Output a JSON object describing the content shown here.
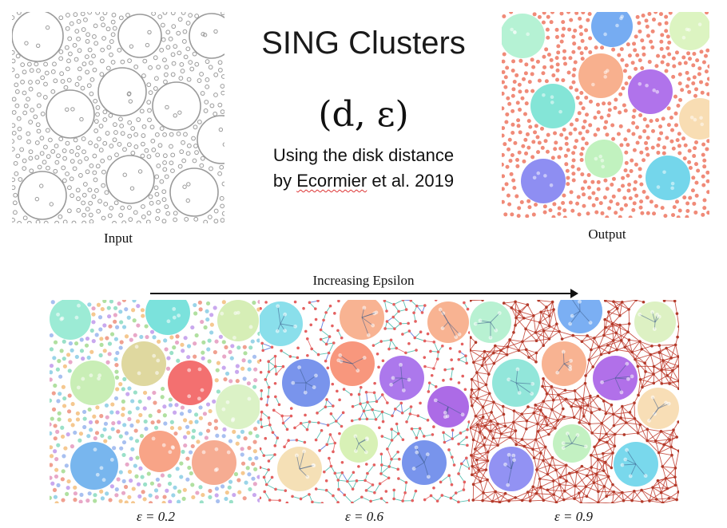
{
  "title": "SING Clusters",
  "formula": "(d, ε)",
  "subtitle_line1": "Using the disk distance",
  "subtitle_line2_word": "Ecormier",
  "subtitle_line2_pre": "by ",
  "subtitle_line2_post": " et al. 2019",
  "input_caption": "Input",
  "output_caption": "Output",
  "arrow_label": "Increasing Epsilon",
  "panels": [
    {
      "label": "ε = 0.2"
    },
    {
      "label": "ε = 0.6"
    },
    {
      "label": "ε = 0.9"
    }
  ],
  "colors": {
    "input_stroke": "#9a9a9a",
    "output_points": "#f08a78",
    "edge_red": "#c0392b",
    "edge_teal": "#3cb6a5"
  },
  "icons": [
    "arrow-right-icon"
  ]
}
